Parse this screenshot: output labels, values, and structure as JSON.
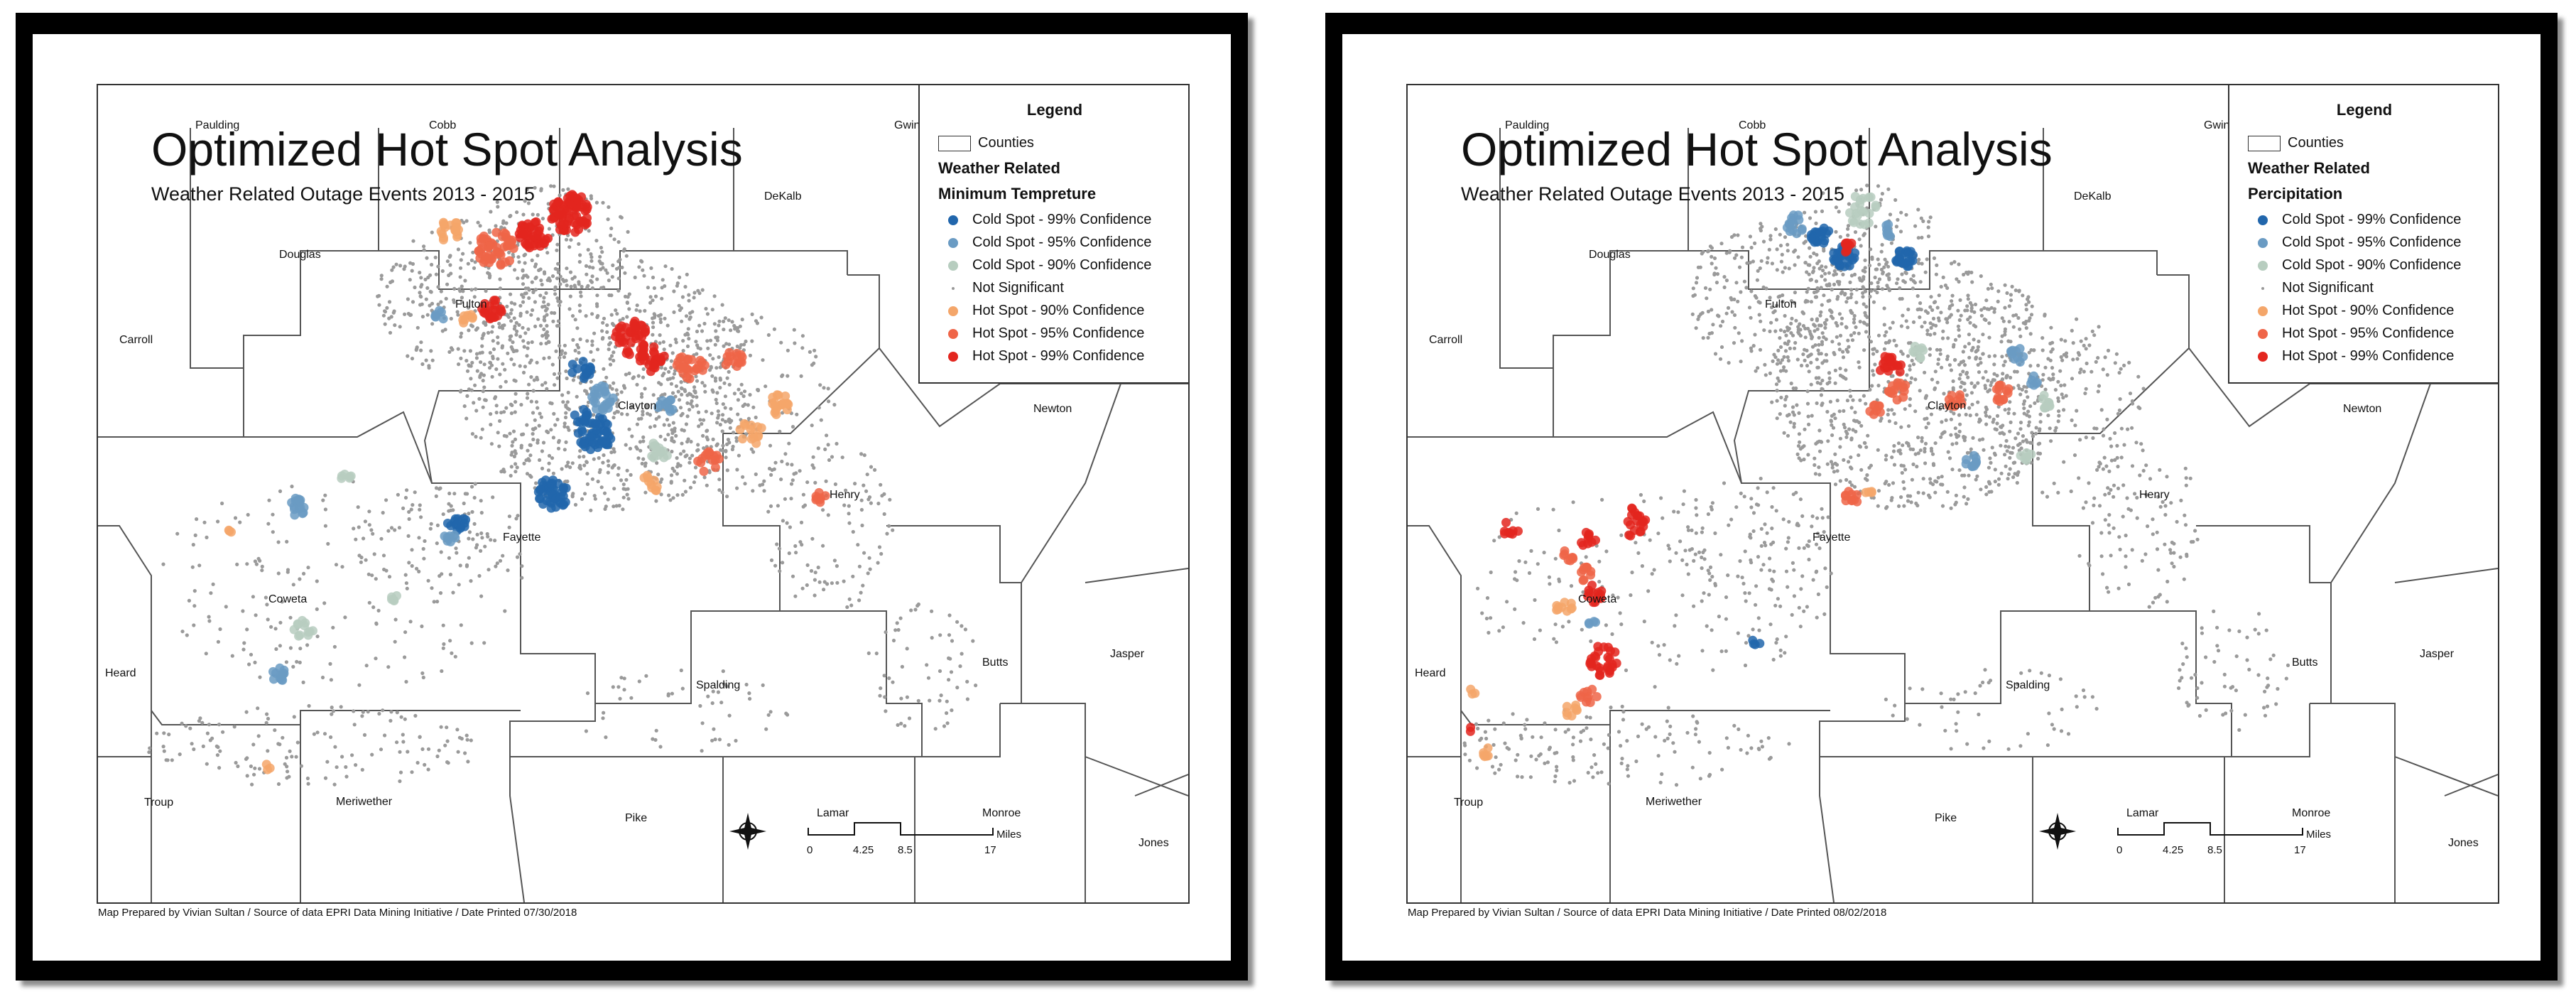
{
  "maps": [
    {
      "title": "Optimized Hot Spot Analysis",
      "subtitle": "Weather Related Outage Events 2013 - 2015",
      "legend": {
        "title": "Legend",
        "counties_label": "Counties",
        "group_label": "Weather Related",
        "variable_label": "Minimum Tempreture",
        "classes": [
          {
            "label": "Cold Spot - 99% Confidence",
            "color": "#2166ac"
          },
          {
            "label": "Cold Spot - 95% Confidence",
            "color": "#6a9bc3"
          },
          {
            "label": "Cold Spot - 90% Confidence",
            "color": "#b7cdbf"
          },
          {
            "label": "Not Significant",
            "color": "#9a9a9a"
          },
          {
            "label": "Hot Spot - 90% Confidence",
            "color": "#f4a66a"
          },
          {
            "label": "Hot Spot - 95% Confidence",
            "color": "#ef6548"
          },
          {
            "label": "Hot Spot - 99% Confidence",
            "color": "#e3261f"
          }
        ]
      },
      "counties": [
        "Paulding",
        "Cobb",
        "Gwinnett",
        "DeKalb",
        "Douglas",
        "Fulton",
        "Carroll",
        "Clayton",
        "Newton",
        "Henry",
        "Fayette",
        "Coweta",
        "Heard",
        "Spalding",
        "Butts",
        "Jasper",
        "Troup",
        "Meriwether",
        "Pike",
        "Lamar",
        "Monroe",
        "Jones"
      ],
      "scale": {
        "ticks": [
          "0",
          "4.25",
          "8.5",
          "17"
        ],
        "unit": "Miles"
      },
      "footer": "Map Prepared by Vivian Sultan / Source of data EPRI Data Mining Initiative / Date Printed 07/30/2018"
    },
    {
      "title": "Optimized Hot Spot Analysis",
      "subtitle": "Weather Related Outage Events 2013 - 2015",
      "legend": {
        "title": "Legend",
        "counties_label": "Counties",
        "group_label": "Weather Related",
        "variable_label": "Percipitation",
        "classes": [
          {
            "label": "Cold Spot - 99% Confidence",
            "color": "#2166ac"
          },
          {
            "label": "Cold Spot - 95% Confidence",
            "color": "#6a9bc3"
          },
          {
            "label": "Cold Spot - 90% Confidence",
            "color": "#b7cdbf"
          },
          {
            "label": "Not Significant",
            "color": "#9a9a9a"
          },
          {
            "label": "Hot Spot - 90% Confidence",
            "color": "#f4a66a"
          },
          {
            "label": "Hot Spot - 95% Confidence",
            "color": "#ef6548"
          },
          {
            "label": "Hot Spot - 99% Confidence",
            "color": "#e3261f"
          }
        ]
      },
      "counties": [
        "Paulding",
        "Cobb",
        "Gwinnett",
        "DeKalb",
        "Douglas",
        "Fulton",
        "Carroll",
        "Clayton",
        "Newton",
        "Henry",
        "Fayette",
        "Coweta",
        "Heard",
        "Spalding",
        "Butts",
        "Jasper",
        "Troup",
        "Meriwether",
        "Pike",
        "Lamar",
        "Monroe",
        "Jones"
      ],
      "scale": {
        "ticks": [
          "0",
          "4.25",
          "8.5",
          "17"
        ],
        "unit": "Miles"
      },
      "footer": "Map Prepared by Vivian Sultan / Source of data EPRI Data Mining Initiative / Date Printed 08/02/2018"
    }
  ]
}
